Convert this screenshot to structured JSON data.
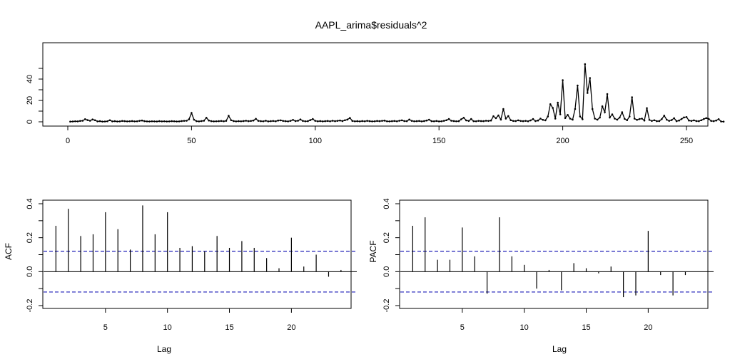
{
  "chart_data": [
    {
      "type": "line",
      "title": "AAPL_arima$residuals^2",
      "xlabel": "",
      "ylabel": "",
      "xlim": [
        0,
        250
      ],
      "ylim": [
        0,
        55
      ],
      "x_ticks": [
        0,
        50,
        100,
        150,
        200,
        250
      ],
      "y_ticks": [
        0,
        20,
        40
      ],
      "points_marked": true,
      "series": [
        {
          "values": [
            0.2,
            0.3,
            0.5,
            0.4,
            0.8,
            1.0,
            2.5,
            1.6,
            1.0,
            2.2,
            1.5,
            0.4,
            0.6,
            0.2,
            0.3,
            0.5,
            1.5,
            0.4,
            0.6,
            0.3,
            0.4,
            0.8,
            0.6,
            0.4,
            0.5,
            0.7,
            0.4,
            0.5,
            0.9,
            1.2,
            0.6,
            0.4,
            0.3,
            0.5,
            0.4,
            0.3,
            0.6,
            0.4,
            0.5,
            0.3,
            0.4,
            0.6,
            0.5,
            0.3,
            0.4,
            0.7,
            0.9,
            1.0,
            2.4,
            8.3,
            2.0,
            0.6,
            0.4,
            0.7,
            1.0,
            3.8,
            1.2,
            0.6,
            0.4,
            0.5,
            0.6,
            0.8,
            0.5,
            0.9,
            5.6,
            1.5,
            0.7,
            0.4,
            0.6,
            0.5,
            0.7,
            1.0,
            0.6,
            0.8,
            1.2,
            2.8,
            0.9,
            0.6,
            0.5,
            1.0,
            0.4,
            0.6,
            0.8,
            0.5,
            1.2,
            1.4,
            0.8,
            0.6,
            0.4,
            0.9,
            1.8,
            0.7,
            1.0,
            2.2,
            0.8,
            0.5,
            0.6,
            1.6,
            2.6,
            0.9,
            0.5,
            0.7,
            0.4,
            0.6,
            0.8,
            0.5,
            1.0,
            0.6,
            0.9,
            1.2,
            0.7,
            1.5,
            2.1,
            3.6,
            0.8,
            0.5,
            0.6,
            0.4,
            0.7,
            0.5,
            0.9,
            0.6,
            0.4,
            0.5,
            0.8,
            0.6,
            0.9,
            1.1,
            0.5,
            0.4,
            0.6,
            0.8,
            0.5,
            1.0,
            1.4,
            0.7,
            0.6,
            2.1,
            0.9,
            0.5,
            0.6,
            0.8,
            0.4,
            0.7,
            1.2,
            2.0,
            0.6,
            0.5,
            0.8,
            0.4,
            0.5,
            0.9,
            1.5,
            2.6,
            1.0,
            0.7,
            0.5,
            0.6,
            2.4,
            3.8,
            1.3,
            0.8,
            2.6,
            0.6,
            0.5,
            0.9,
            0.7,
            0.6,
            1.0,
            0.8,
            1.2,
            5.2,
            3.4,
            6.0,
            2.1,
            12.0,
            3.0,
            5.4,
            1.5,
            0.8,
            0.7,
            1.4,
            0.8,
            0.6,
            0.9,
            0.5,
            1.3,
            2.6,
            0.7,
            1.2,
            3.0,
            1.8,
            1.4,
            5.0,
            16.5,
            13.0,
            3.0,
            18.0,
            7.0,
            39.0,
            3.5,
            6.5,
            3.0,
            2.0,
            12.0,
            34.0,
            5.0,
            2.4,
            54.0,
            27.0,
            41.0,
            12.0,
            3.0,
            2.0,
            4.0,
            14.5,
            9.0,
            26.0,
            4.0,
            7.0,
            3.0,
            2.0,
            4.0,
            9.0,
            2.8,
            1.5,
            5.0,
            23.0,
            3.0,
            1.8,
            2.6,
            3.0,
            1.2,
            12.8,
            1.8,
            0.8,
            1.5,
            0.6,
            0.7,
            2.5,
            5.8,
            2.0,
            0.9,
            1.6,
            3.4,
            0.6,
            1.2,
            2.6,
            4.1,
            4.5,
            1.2,
            0.8,
            1.4,
            0.7,
            0.6,
            1.5,
            2.6,
            3.5,
            2.7,
            0.8,
            0.6,
            1.2,
            2.5,
            0.3,
            0.2
          ]
        }
      ]
    },
    {
      "type": "bar",
      "title": "",
      "xlabel": "Lag",
      "ylabel": "ACF",
      "xlim": [
        0,
        24.7
      ],
      "ylim": [
        -0.2,
        0.4
      ],
      "x_ticks": [
        5,
        10,
        15,
        20
      ],
      "y_ticks": [
        -0.2,
        0.0,
        0.2,
        0.4
      ],
      "confidence_band": [
        0.12,
        -0.12
      ],
      "x": [
        1,
        2,
        3,
        4,
        5,
        6,
        7,
        8,
        9,
        10,
        11,
        12,
        13,
        14,
        15,
        16,
        17,
        18,
        19,
        20,
        21,
        22,
        23,
        24
      ],
      "values": [
        0.27,
        0.37,
        0.21,
        0.22,
        0.35,
        0.25,
        0.13,
        0.39,
        0.22,
        0.35,
        0.14,
        0.15,
        0.12,
        0.21,
        0.14,
        0.18,
        0.14,
        0.08,
        0.02,
        0.2,
        0.03,
        0.1,
        -0.03,
        0.01
      ]
    },
    {
      "type": "bar",
      "title": "",
      "xlabel": "Lag",
      "ylabel": "PACF",
      "xlim": [
        0,
        24.7
      ],
      "ylim": [
        -0.2,
        0.4
      ],
      "x_ticks": [
        5,
        10,
        15,
        20
      ],
      "y_ticks": [
        -0.2,
        0.0,
        0.2,
        0.4
      ],
      "confidence_band": [
        0.12,
        -0.12
      ],
      "x": [
        1,
        2,
        3,
        4,
        5,
        6,
        7,
        8,
        9,
        10,
        11,
        12,
        13,
        14,
        15,
        16,
        17,
        18,
        19,
        20,
        21,
        22,
        23
      ],
      "values": [
        0.27,
        0.32,
        0.07,
        0.07,
        0.26,
        0.09,
        -0.13,
        0.32,
        0.09,
        0.04,
        -0.1,
        0.01,
        -0.11,
        0.05,
        0.02,
        -0.01,
        0.03,
        -0.15,
        -0.14,
        0.24,
        -0.02,
        -0.14,
        -0.02
      ]
    }
  ]
}
